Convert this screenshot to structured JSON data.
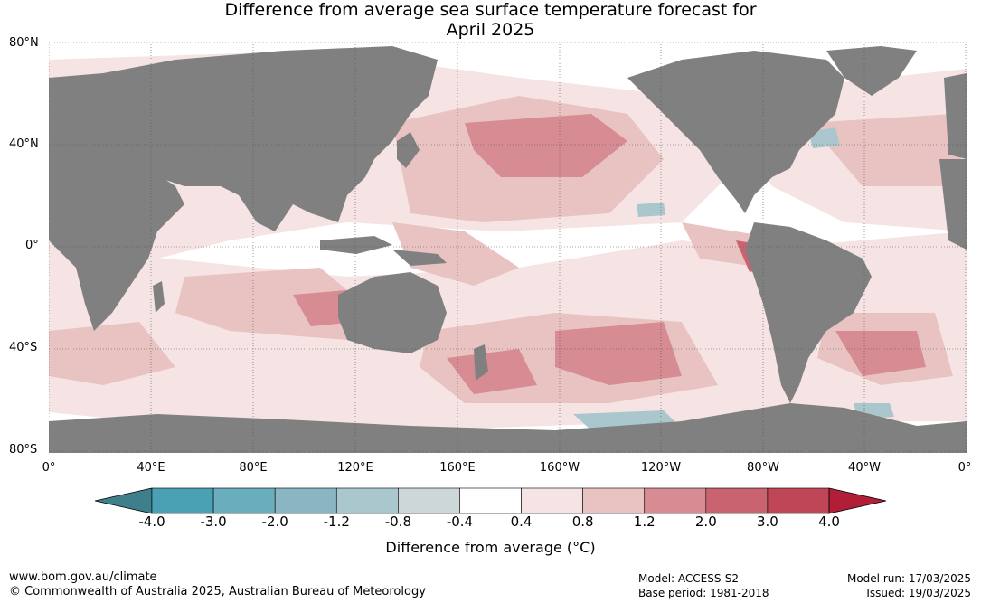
{
  "title_line1": "Difference from average sea surface temperature forecast for",
  "title_line2": "April 2025",
  "lat_labels": [
    "80°N",
    "40°N",
    "0°",
    "40°S",
    "80°S"
  ],
  "lon_labels": [
    "0°",
    "40°E",
    "80°E",
    "120°E",
    "160°E",
    "160°W",
    "120°W",
    "80°W",
    "40°W",
    "0°"
  ],
  "colorbar": {
    "ticks": [
      "-4.0",
      "-3.0",
      "-2.0",
      "-1.2",
      "-0.8",
      "-0.4",
      "0.4",
      "0.8",
      "1.2",
      "2.0",
      "3.0",
      "4.0"
    ],
    "colors": [
      "#3f7f8c",
      "#4aa1b3",
      "#6aaebd",
      "#8ab6c3",
      "#a9c7cd",
      "#cdd7d8",
      "#ffffff",
      "#f5e4e3",
      "#e8c3c1",
      "#d78b93",
      "#c9636f",
      "#bf4656",
      "#b01e38"
    ],
    "label": "Difference from average (°C)"
  },
  "colors": {
    "land": "#808080",
    "ocean": "#ffffff"
  },
  "footer": {
    "url": "www.bom.gov.au/climate",
    "copyright": "© Commonwealth of Australia 2025, Australian Bureau of Meteorology",
    "model": "Model: ACCESS-S2",
    "base_period": "Base period: 1981-2018",
    "model_run": "Model run: 17/03/2025",
    "issued": "Issued: 19/03/2025"
  }
}
